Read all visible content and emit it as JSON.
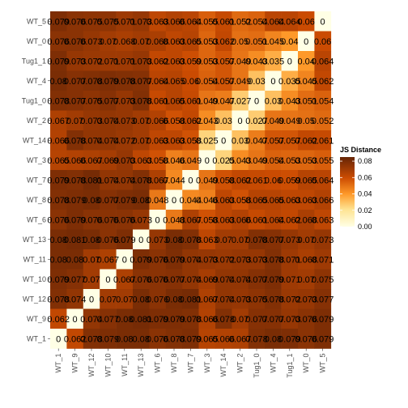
{
  "chart_data": {
    "type": "heatmap",
    "title": "",
    "xlabel": "",
    "ylabel": "",
    "x_labels": [
      "WT_1",
      "WT_9",
      "WT_12",
      "WT_10",
      "WT_11",
      "WT_13",
      "WT_6",
      "WT_8",
      "WT_7",
      "WT_3",
      "WT_14",
      "WT_2",
      "Tug1_0",
      "WT_4",
      "Tug1_1",
      "WT_0",
      "WT_5"
    ],
    "y_labels": [
      "WT_5",
      "WT_0",
      "Tug1_1",
      "WT_4",
      "Tug1_0",
      "WT_2",
      "WT_14",
      "WT_3",
      "WT_7",
      "WT_8",
      "WT_6",
      "WT_13",
      "WT_11",
      "WT_10",
      "WT_12",
      "WT_9",
      "WT_1"
    ],
    "values": [
      [
        0.079,
        0.076,
        0.075,
        0.075,
        0.071,
        0.073,
        0.063,
        0.066,
        0.064,
        0.055,
        0.061,
        0.052,
        0.054,
        0.064,
        0.064,
        0.06,
        0.0
      ],
      [
        0.076,
        0.076,
        0.073,
        0.07,
        0.068,
        0.07,
        0.068,
        0.063,
        0.065,
        0.053,
        0.062,
        0.05,
        0.051,
        0.045,
        0.04,
        0.0,
        0.06
      ],
      [
        0.079,
        0.073,
        0.072,
        0.071,
        0.071,
        0.073,
        0.062,
        0.063,
        0.059,
        0.053,
        0.057,
        0.049,
        0.043,
        0.035,
        0.0,
        0.04,
        0.064
      ],
      [
        0.08,
        0.077,
        0.078,
        0.079,
        0.078,
        0.077,
        0.064,
        0.065,
        0.06,
        0.054,
        0.057,
        0.049,
        0.03,
        0.0,
        0.035,
        0.045,
        0.062
      ],
      [
        0.078,
        0.077,
        0.075,
        0.077,
        0.073,
        0.078,
        0.061,
        0.065,
        0.061,
        0.049,
        0.047,
        0.027,
        0.0,
        0.03,
        0.043,
        0.051,
        0.054
      ],
      [
        0.067,
        0.07,
        0.073,
        0.074,
        0.073,
        0.07,
        0.066,
        0.058,
        0.062,
        0.043,
        0.03,
        0.0,
        0.027,
        0.049,
        0.049,
        0.05,
        0.052
      ],
      [
        0.066,
        0.078,
        0.074,
        0.074,
        0.072,
        0.07,
        0.063,
        0.063,
        0.058,
        0.025,
        0.0,
        0.03,
        0.047,
        0.057,
        0.057,
        0.062,
        0.061
      ],
      [
        0.065,
        0.066,
        0.067,
        0.069,
        0.073,
        0.063,
        0.058,
        0.046,
        0.049,
        0.0,
        0.025,
        0.043,
        0.049,
        0.054,
        0.053,
        0.053,
        0.055
      ],
      [
        0.079,
        0.078,
        0.081,
        0.074,
        0.074,
        0.078,
        0.067,
        0.044,
        0.0,
        0.049,
        0.058,
        0.062,
        0.061,
        0.06,
        0.059,
        0.065,
        0.064
      ],
      [
        0.078,
        0.079,
        0.08,
        0.077,
        0.079,
        0.08,
        0.048,
        0.0,
        0.044,
        0.046,
        0.063,
        0.058,
        0.065,
        0.065,
        0.063,
        0.063,
        0.066
      ],
      [
        0.076,
        0.079,
        0.076,
        0.076,
        0.076,
        0.073,
        0.0,
        0.048,
        0.067,
        0.058,
        0.063,
        0.066,
        0.061,
        0.064,
        0.062,
        0.068,
        0.063
      ],
      [
        0.08,
        0.081,
        0.08,
        0.076,
        0.079,
        0.0,
        0.073,
        0.08,
        0.078,
        0.063,
        0.07,
        0.07,
        0.078,
        0.077,
        0.073,
        0.07,
        0.073
      ],
      [
        0.08,
        0.08,
        0.07,
        0.067,
        0.0,
        0.079,
        0.076,
        0.079,
        0.074,
        0.073,
        0.072,
        0.073,
        0.073,
        0.078,
        0.071,
        0.068,
        0.071
      ],
      [
        0.079,
        0.077,
        0.07,
        0.0,
        0.067,
        0.076,
        0.076,
        0.077,
        0.074,
        0.069,
        0.074,
        0.074,
        0.077,
        0.079,
        0.071,
        0.07,
        0.075
      ],
      [
        0.078,
        0.074,
        0.0,
        0.07,
        0.07,
        0.08,
        0.076,
        0.08,
        0.081,
        0.067,
        0.074,
        0.073,
        0.075,
        0.078,
        0.072,
        0.073,
        0.077
      ],
      [
        0.062,
        0.0,
        0.074,
        0.077,
        0.08,
        0.081,
        0.079,
        0.079,
        0.078,
        0.066,
        0.078,
        0.07,
        0.077,
        0.077,
        0.073,
        0.076,
        0.079
      ],
      [
        0.0,
        0.062,
        0.078,
        0.079,
        0.08,
        0.08,
        0.076,
        0.078,
        0.079,
        0.065,
        0.066,
        0.067,
        0.078,
        0.08,
        0.079,
        0.076,
        0.079
      ]
    ],
    "legend": {
      "title": "JS Distance",
      "ticks": [
        "0.08",
        "0.06",
        "0.04",
        "0.02",
        "0.00"
      ],
      "tick_values": [
        0.08,
        0.06,
        0.04,
        0.02,
        0.0
      ],
      "min": 0,
      "max": 0.085,
      "placement": "right",
      "low_color": "#FFFFE5",
      "mid_color": "#FE9929",
      "high_color": "#662506"
    },
    "grid": false
  }
}
